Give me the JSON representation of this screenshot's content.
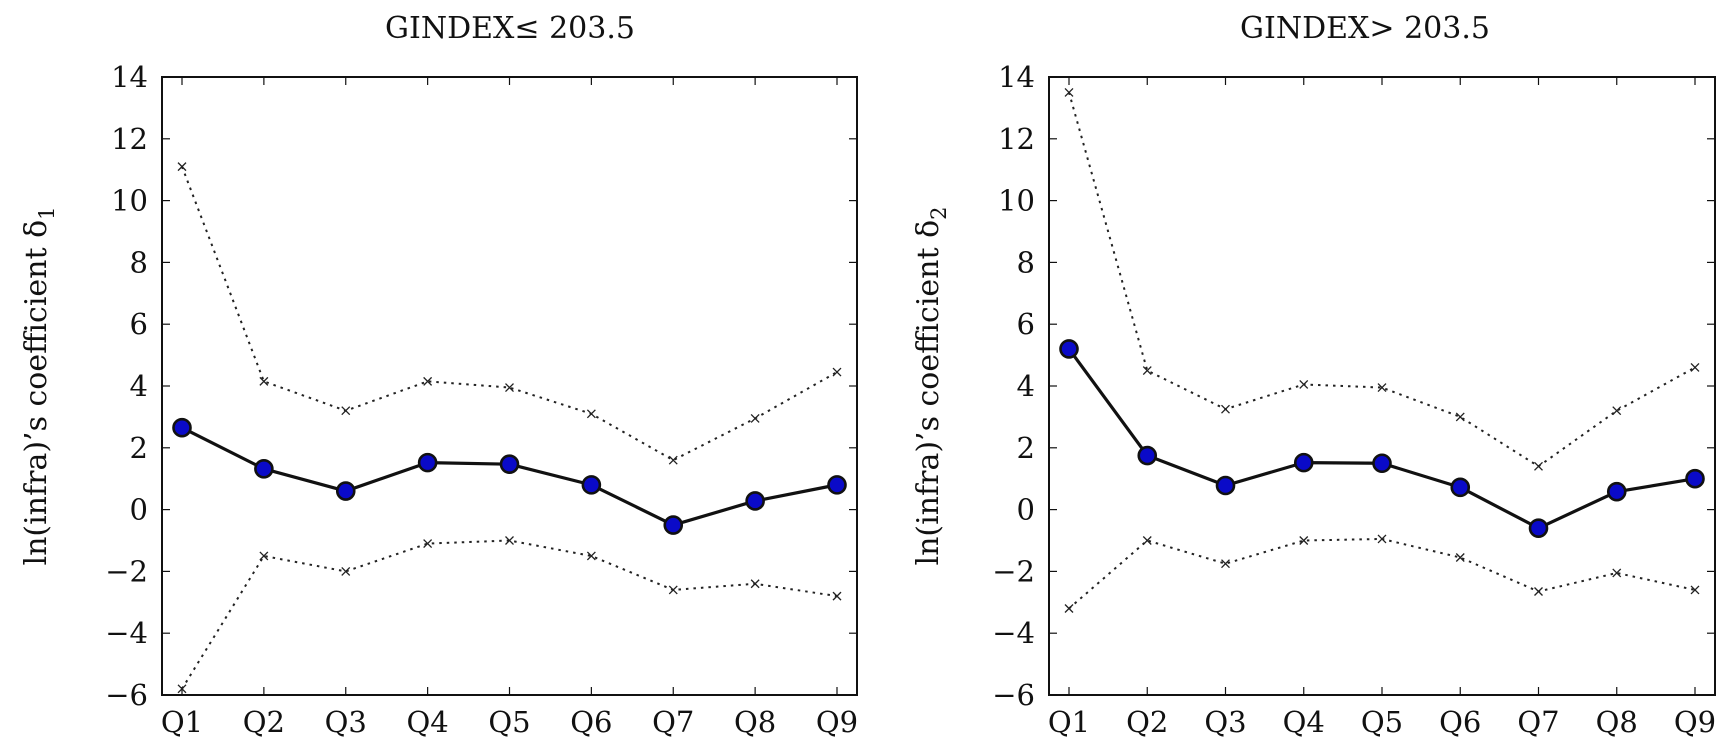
{
  "colors": {
    "marker_fill": "#0a0ac8",
    "marker_stroke": "#111111",
    "line": "#111111"
  },
  "chart_data": [
    {
      "type": "line",
      "title": "GINDEX≤ 203.5",
      "xlabel": "",
      "ylabel": "ln(infra)’s coefficient δ",
      "ylabel_sub": "1",
      "categories": [
        "Q1",
        "Q2",
        "Q3",
        "Q4",
        "Q5",
        "Q6",
        "Q7",
        "Q8",
        "Q9"
      ],
      "ylim": [
        -6,
        14
      ],
      "yticks": [
        -6,
        -4,
        -2,
        0,
        2,
        4,
        6,
        8,
        10,
        12,
        14
      ],
      "ytick_labels": [
        "−6",
        "−4",
        "−2",
        "0",
        "2",
        "4",
        "6",
        "8",
        "10",
        "12",
        "14"
      ],
      "grid": false,
      "series": [
        {
          "role": "estimate",
          "values": [
            2.65,
            1.32,
            0.6,
            1.52,
            1.47,
            0.8,
            -0.5,
            0.28,
            0.8
          ]
        },
        {
          "role": "upper",
          "values": [
            11.1,
            4.15,
            3.2,
            4.15,
            3.95,
            3.1,
            1.6,
            2.95,
            4.45
          ]
        },
        {
          "role": "lower",
          "values": [
            -5.8,
            -1.5,
            -2.0,
            -1.1,
            -1.0,
            -1.5,
            -2.6,
            -2.4,
            -2.8
          ]
        }
      ]
    },
    {
      "type": "line",
      "title": "GINDEX> 203.5",
      "xlabel": "",
      "ylabel": "ln(infra)’s coefficient δ",
      "ylabel_sub": "2",
      "categories": [
        "Q1",
        "Q2",
        "Q3",
        "Q4",
        "Q5",
        "Q6",
        "Q7",
        "Q8",
        "Q9"
      ],
      "ylim": [
        -6,
        14
      ],
      "yticks": [
        -6,
        -4,
        -2,
        0,
        2,
        4,
        6,
        8,
        10,
        12,
        14
      ],
      "ytick_labels": [
        "−6",
        "−4",
        "−2",
        "0",
        "2",
        "4",
        "6",
        "8",
        "10",
        "12",
        "14"
      ],
      "grid": false,
      "series": [
        {
          "role": "estimate",
          "values": [
            5.2,
            1.75,
            0.78,
            1.52,
            1.5,
            0.72,
            -0.6,
            0.58,
            1.0
          ]
        },
        {
          "role": "upper",
          "values": [
            13.5,
            4.5,
            3.25,
            4.05,
            3.95,
            3.0,
            1.4,
            3.2,
            4.6
          ]
        },
        {
          "role": "lower",
          "values": [
            -3.2,
            -1.0,
            -1.75,
            -1.0,
            -0.95,
            -1.55,
            -2.65,
            -2.05,
            -2.6
          ]
        }
      ]
    }
  ]
}
